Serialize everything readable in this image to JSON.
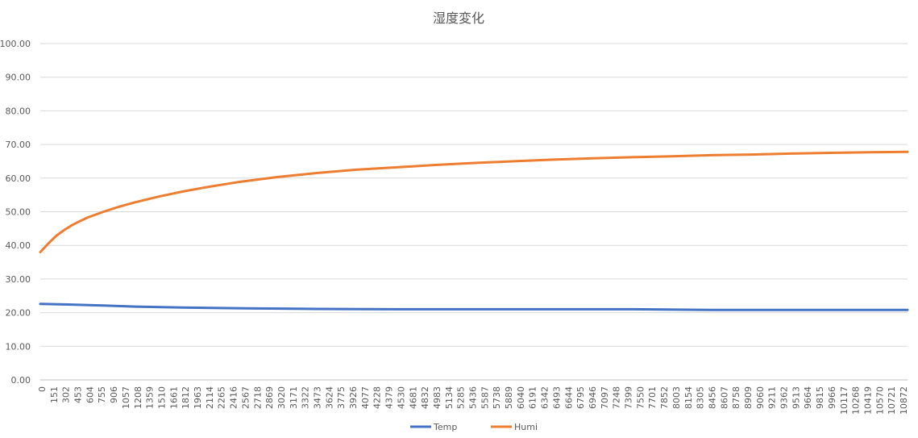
{
  "chart_data": {
    "type": "line",
    "title": "湿度変化",
    "xlabel": "",
    "ylabel": "",
    "ylim": [
      0,
      100
    ],
    "y_ticks": [
      "0.00",
      "10.00",
      "20.00",
      "30.00",
      "40.00",
      "50.00",
      "60.00",
      "70.00",
      "80.00",
      "90.00",
      "100.00"
    ],
    "x_range": [
      0,
      10980
    ],
    "x_ticks": [
      "0",
      "151",
      "302",
      "453",
      "604",
      "755",
      "906",
      "1057",
      "1208",
      "1359",
      "1510",
      "1661",
      "1812",
      "1963",
      "2114",
      "2265",
      "2416",
      "2567",
      "2718",
      "2869",
      "3020",
      "3171",
      "3322",
      "3473",
      "3624",
      "3775",
      "3926",
      "4077",
      "4228",
      "4379",
      "4530",
      "4681",
      "4832",
      "4983",
      "5134",
      "5285",
      "5436",
      "5587",
      "5738",
      "5889",
      "6040",
      "6191",
      "6342",
      "6493",
      "6644",
      "6795",
      "6946",
      "7097",
      "7248",
      "7399",
      "7550",
      "7701",
      "7852",
      "8003",
      "8154",
      "8305",
      "8456",
      "8607",
      "8758",
      "8909",
      "9060",
      "9211",
      "9362",
      "9513",
      "9664",
      "9815",
      "9966",
      "10117",
      "10268",
      "10419",
      "10570",
      "10721",
      "10872"
    ],
    "grid": true,
    "legend_position": "bottom",
    "series": [
      {
        "name": "Temp",
        "color": "#4472C4",
        "x": [
          0,
          400,
          800,
          1200,
          1800,
          2600,
          3500,
          4500,
          6000,
          7500,
          8500,
          9500,
          10980
        ],
        "y": [
          22.6,
          22.4,
          22.1,
          21.8,
          21.5,
          21.3,
          21.1,
          21.0,
          21.0,
          21.0,
          20.8,
          20.8,
          20.8
        ]
      },
      {
        "name": "Humi",
        "color": "#ED7D31",
        "x": [
          0,
          100,
          200,
          300,
          400,
          500,
          600,
          800,
          1000,
          1200,
          1500,
          1800,
          2100,
          2500,
          3000,
          3500,
          4000,
          4500,
          5000,
          5500,
          6000,
          6500,
          7000,
          7500,
          8000,
          8500,
          9000,
          9500,
          10000,
          10500,
          10980
        ],
        "y": [
          38.0,
          40.5,
          42.8,
          44.5,
          46.0,
          47.2,
          48.3,
          50.0,
          51.5,
          52.8,
          54.5,
          56.0,
          57.3,
          58.8,
          60.3,
          61.5,
          62.5,
          63.2,
          63.9,
          64.5,
          65.0,
          65.5,
          65.9,
          66.2,
          66.5,
          66.8,
          67.0,
          67.3,
          67.5,
          67.7,
          67.8
        ]
      }
    ]
  }
}
